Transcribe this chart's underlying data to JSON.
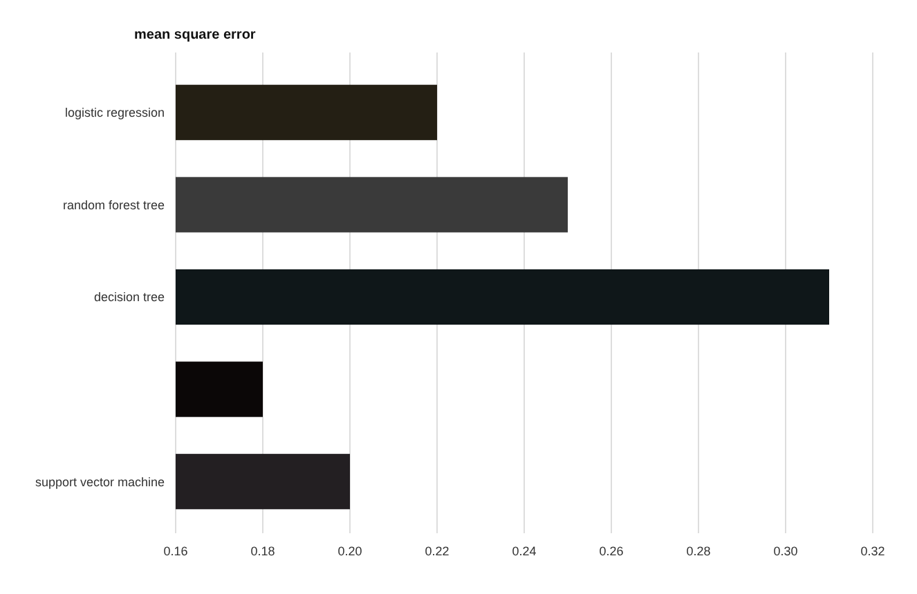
{
  "chart_data": {
    "type": "bar",
    "orientation": "horizontal",
    "title": "mean square error",
    "categories": [
      "logistic regression",
      "random forest tree",
      "decision tree",
      null,
      "support vector machine"
    ],
    "values": [
      0.22,
      0.25,
      0.31,
      0.18,
      0.2
    ],
    "colors": [
      "#241f14",
      "#3a3a3a",
      "#0f1719",
      "#0b0707",
      "#231f22"
    ],
    "xlim": [
      0.16,
      0.32
    ],
    "xticks": [
      0.16,
      0.18,
      {
        "value": 0.2,
        "label": "0.20"
      },
      0.22,
      0.24,
      0.26,
      0.28,
      {
        "value": 0.3,
        "label": "0.30"
      },
      0.32
    ],
    "grid": "x"
  }
}
